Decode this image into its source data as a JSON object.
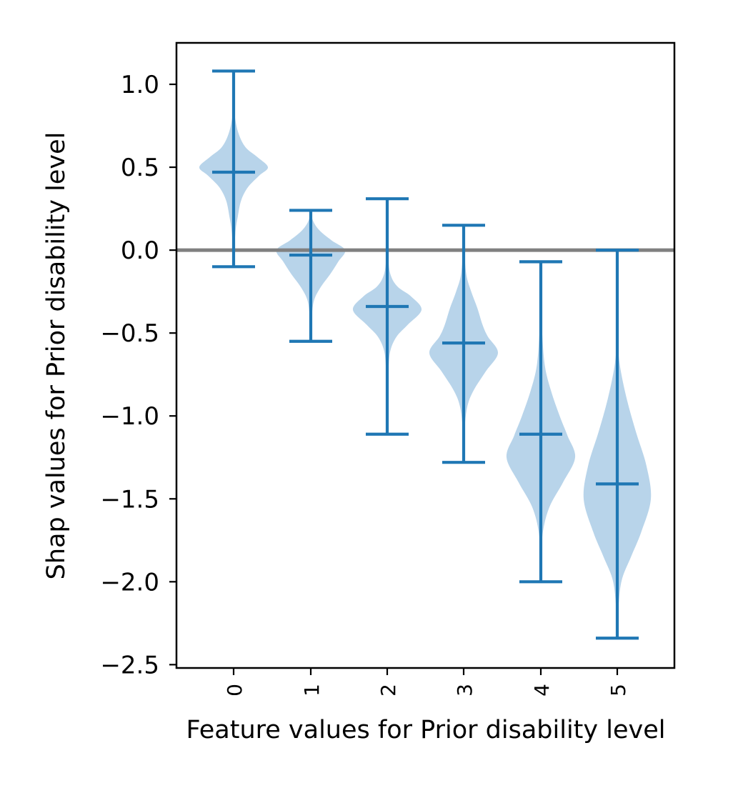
{
  "chart_data": {
    "type": "violin",
    "title": "",
    "xlabel": "Feature values for Prior disability level",
    "ylabel": "Shap values for Prior disability level",
    "ylim": [
      -2.52,
      1.25
    ],
    "yticks": [
      "1.0",
      "0.5",
      "0.0",
      "−0.5",
      "−1.0",
      "−1.5",
      "−2.0",
      "−2.5"
    ],
    "ytick_values": [
      1.0,
      0.5,
      0.0,
      -0.5,
      -1.0,
      -1.5,
      -2.0,
      -2.5
    ],
    "categories": [
      "0",
      "1",
      "2",
      "3",
      "4",
      "5"
    ],
    "reference_line": 0.0,
    "violins": [
      {
        "category": "0",
        "min": -0.1,
        "max": 1.08,
        "median": 0.47,
        "profile": [
          [
            -0.1,
            0.0
          ],
          [
            0.1,
            0.05
          ],
          [
            0.2,
            0.12
          ],
          [
            0.3,
            0.22
          ],
          [
            0.38,
            0.42
          ],
          [
            0.45,
            0.75
          ],
          [
            0.5,
            1.0
          ],
          [
            0.56,
            0.7
          ],
          [
            0.62,
            0.35
          ],
          [
            0.7,
            0.15
          ],
          [
            0.8,
            0.04
          ],
          [
            0.9,
            0.01
          ],
          [
            1.08,
            0.0
          ]
        ]
      },
      {
        "category": "1",
        "min": -0.55,
        "max": 0.24,
        "median": -0.03,
        "profile": [
          [
            -0.55,
            0.0
          ],
          [
            -0.4,
            0.03
          ],
          [
            -0.3,
            0.1
          ],
          [
            -0.22,
            0.3
          ],
          [
            -0.15,
            0.55
          ],
          [
            -0.07,
            0.8
          ],
          [
            0.0,
            1.0
          ],
          [
            0.06,
            0.6
          ],
          [
            0.12,
            0.25
          ],
          [
            0.18,
            0.06
          ],
          [
            0.24,
            0.0
          ]
        ]
      },
      {
        "category": "2",
        "min": -1.11,
        "max": 0.31,
        "median": -0.34,
        "profile": [
          [
            -1.11,
            0.0
          ],
          [
            -0.9,
            0.01
          ],
          [
            -0.7,
            0.04
          ],
          [
            -0.6,
            0.1
          ],
          [
            -0.52,
            0.28
          ],
          [
            -0.45,
            0.6
          ],
          [
            -0.36,
            1.0
          ],
          [
            -0.28,
            0.7
          ],
          [
            -0.22,
            0.3
          ],
          [
            -0.15,
            0.1
          ],
          [
            -0.05,
            0.03
          ],
          [
            0.1,
            0.01
          ],
          [
            0.31,
            0.0
          ]
        ]
      },
      {
        "category": "3",
        "min": -1.28,
        "max": 0.15,
        "median": -0.56,
        "profile": [
          [
            -1.28,
            0.0
          ],
          [
            -1.1,
            0.02
          ],
          [
            -0.95,
            0.1
          ],
          [
            -0.85,
            0.28
          ],
          [
            -0.73,
            0.65
          ],
          [
            -0.62,
            1.0
          ],
          [
            -0.52,
            0.7
          ],
          [
            -0.45,
            0.55
          ],
          [
            -0.35,
            0.4
          ],
          [
            -0.25,
            0.22
          ],
          [
            -0.15,
            0.08
          ],
          [
            0.0,
            0.02
          ],
          [
            0.15,
            0.0
          ]
        ]
      },
      {
        "category": "4",
        "min": -2.0,
        "max": -0.07,
        "median": -1.11,
        "profile": [
          [
            -2.0,
            0.0
          ],
          [
            -1.85,
            0.02
          ],
          [
            -1.7,
            0.06
          ],
          [
            -1.55,
            0.25
          ],
          [
            -1.4,
            0.65
          ],
          [
            -1.25,
            1.0
          ],
          [
            -1.12,
            0.78
          ],
          [
            -1.0,
            0.55
          ],
          [
            -0.85,
            0.3
          ],
          [
            -0.7,
            0.12
          ],
          [
            -0.5,
            0.04
          ],
          [
            -0.3,
            0.01
          ],
          [
            -0.07,
            0.0
          ]
        ]
      },
      {
        "category": "5",
        "min": -2.34,
        "max": 0.0,
        "median": -1.41,
        "profile": [
          [
            -2.34,
            0.0
          ],
          [
            -2.2,
            0.02
          ],
          [
            -2.0,
            0.12
          ],
          [
            -1.85,
            0.4
          ],
          [
            -1.7,
            0.7
          ],
          [
            -1.5,
            0.98
          ],
          [
            -1.3,
            0.85
          ],
          [
            -1.1,
            0.55
          ],
          [
            -0.9,
            0.28
          ],
          [
            -0.7,
            0.08
          ],
          [
            -0.55,
            0.02
          ],
          [
            -0.3,
            0.0
          ],
          [
            0.0,
            0.0
          ]
        ]
      }
    ],
    "colors": {
      "violin_fill": "#b8d4ea",
      "line": "#1f77b4",
      "reference": "#808080",
      "axes": "#000000"
    },
    "grid": false,
    "legend": "none"
  }
}
